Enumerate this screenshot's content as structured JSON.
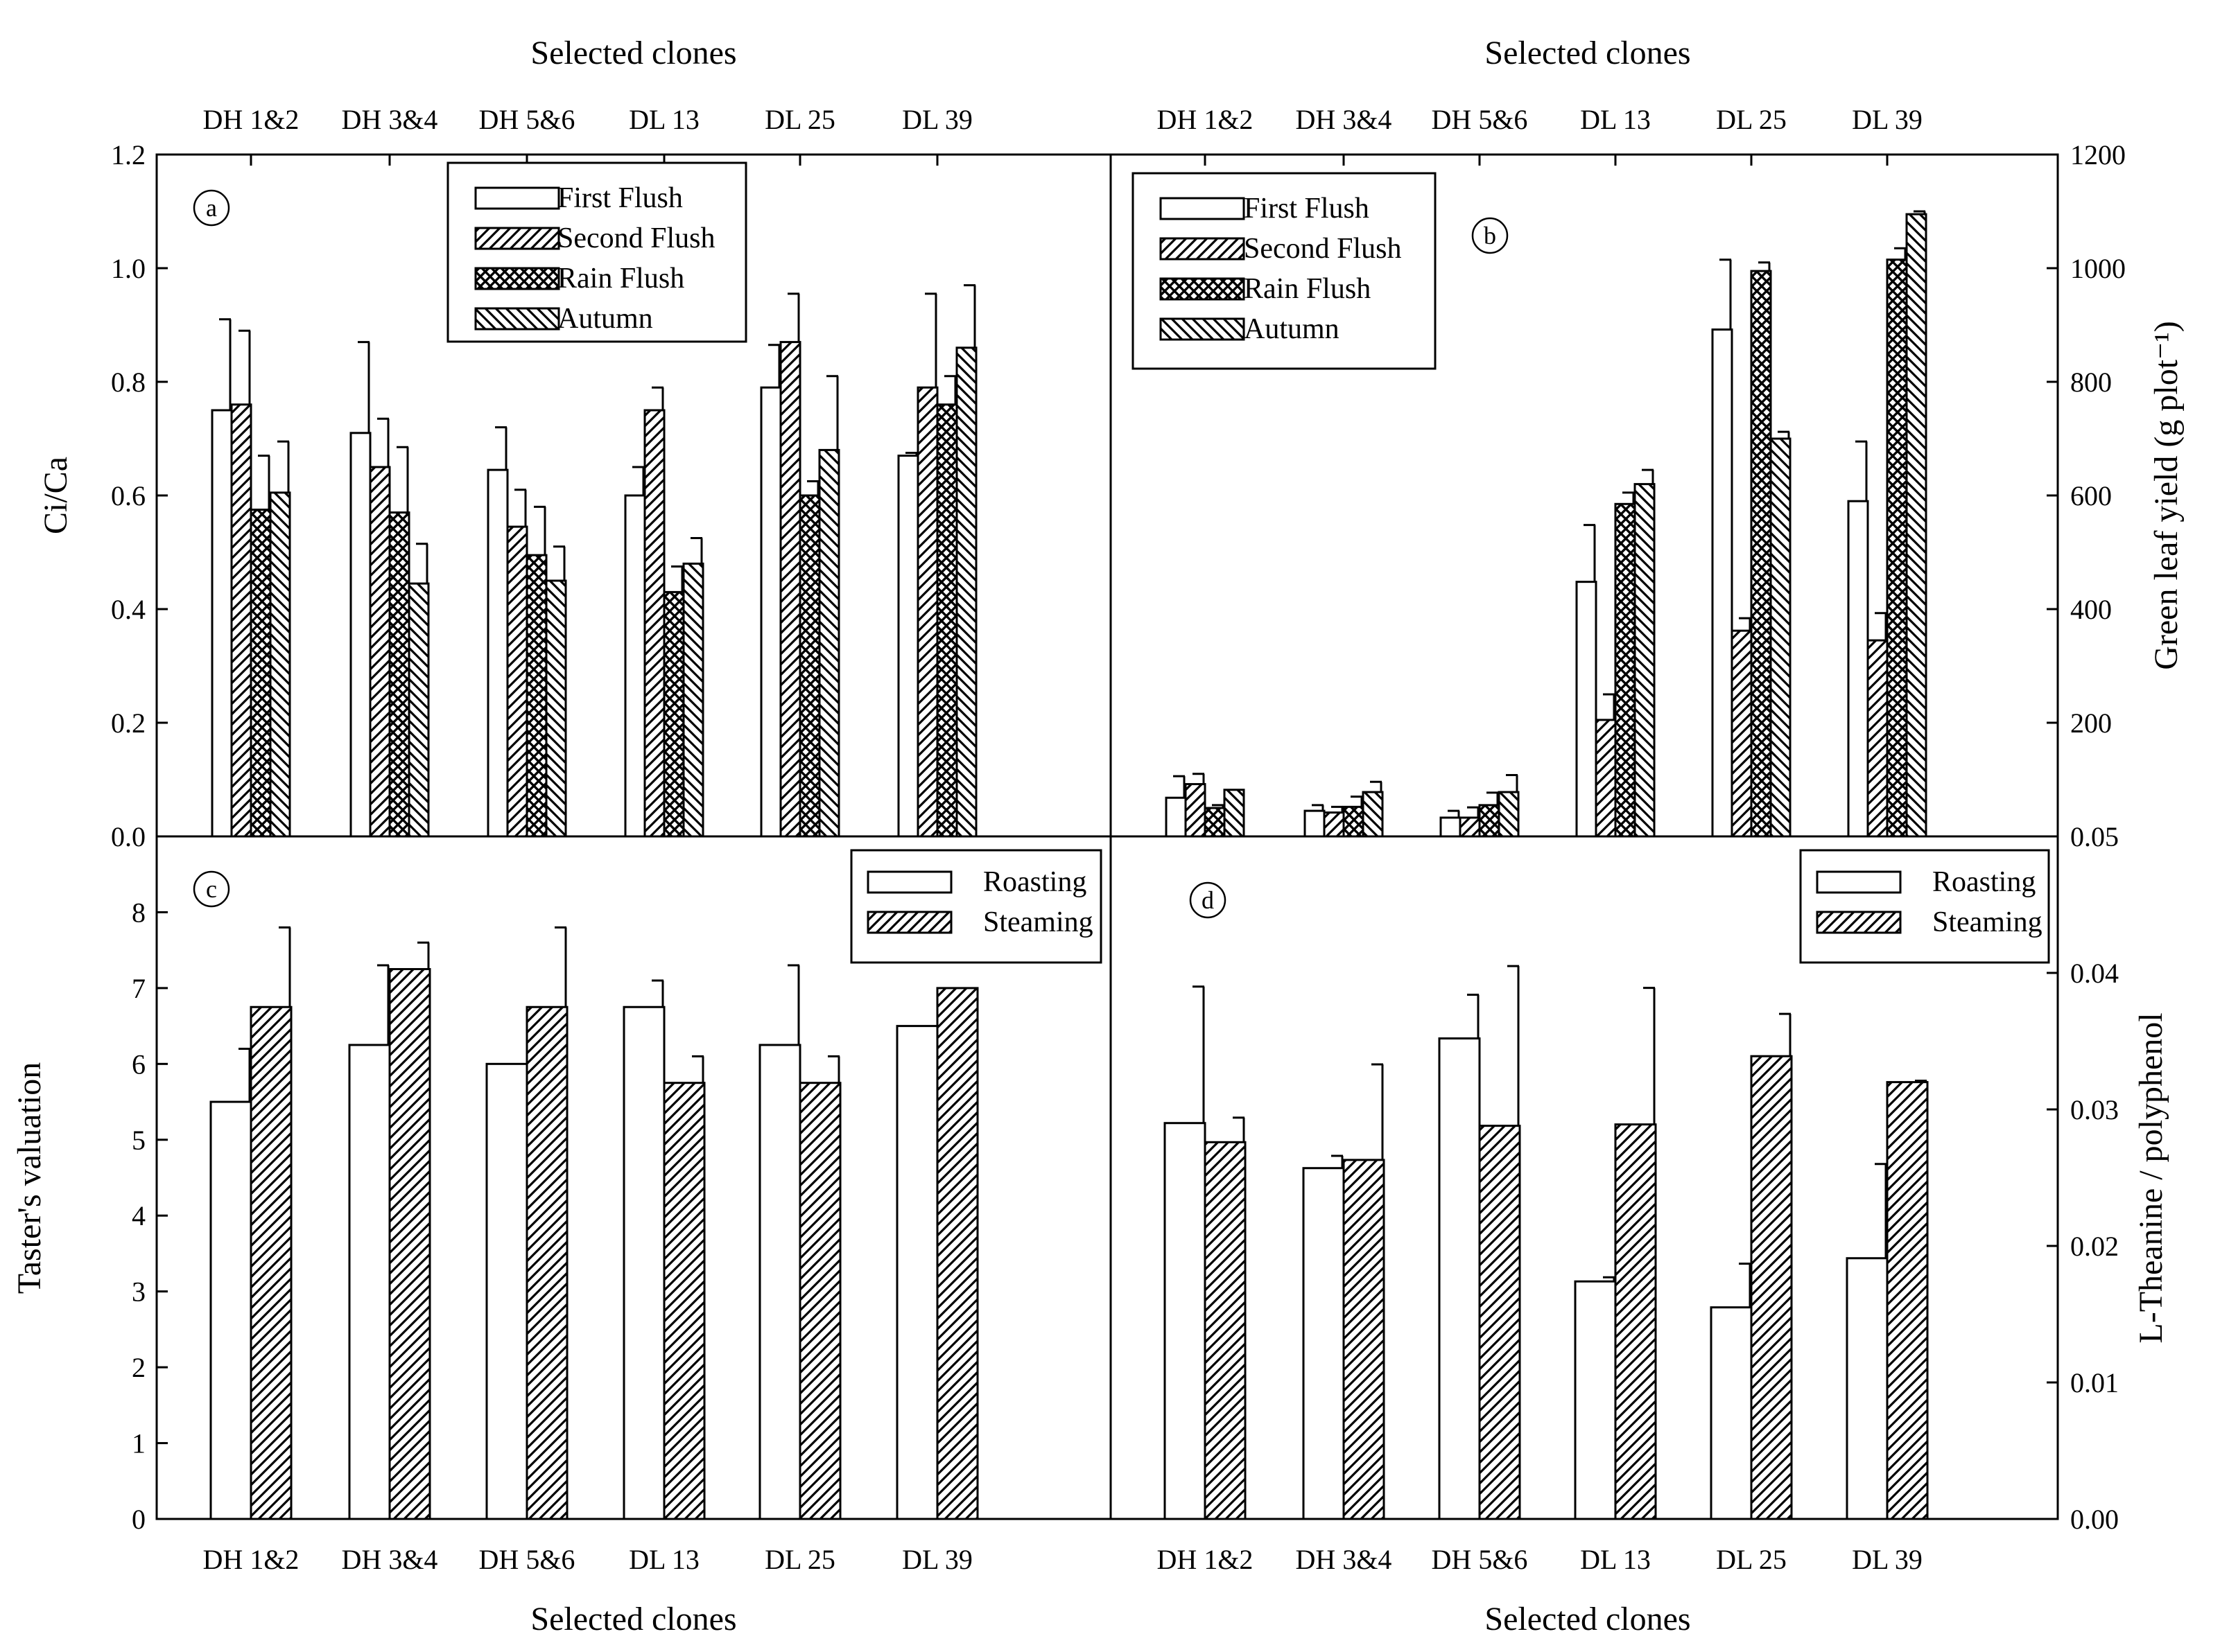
{
  "figure": {
    "top_axis_title": "Selected clones",
    "bottom_axis_title": "Selected clones"
  },
  "chart_data": [
    {
      "panel": "a",
      "type": "bar",
      "categories": [
        "DH 1&2",
        "DH 3&4",
        "DH 5&6",
        "DL 13",
        "DL 25",
        "DL 39"
      ],
      "category_axis": "top",
      "ylabel": "Ci/Ca",
      "y_axis_side": "left",
      "ylim": [
        0,
        1.2
      ],
      "yticks": [
        "0.0",
        "0.2",
        "0.4",
        "0.6",
        "0.8",
        "1.0",
        "1.2"
      ],
      "legend_position": "top-center",
      "series": [
        {
          "name": "First Flush",
          "pattern": "open",
          "values": [
            0.75,
            0.71,
            0.645,
            0.6,
            0.79,
            0.67
          ],
          "errors": [
            0.16,
            0.16,
            0.075,
            0.05,
            0.075,
            0.005
          ]
        },
        {
          "name": "Second Flush",
          "pattern": "hatch-right",
          "values": [
            0.76,
            0.65,
            0.545,
            0.75,
            0.87,
            0.79
          ],
          "errors": [
            0.13,
            0.085,
            0.065,
            0.04,
            0.085,
            0.165
          ]
        },
        {
          "name": "Rain Flush",
          "pattern": "crosshatch",
          "values": [
            0.575,
            0.57,
            0.495,
            0.43,
            0.6,
            0.76
          ],
          "errors": [
            0.095,
            0.115,
            0.085,
            0.045,
            0.025,
            0.05
          ]
        },
        {
          "name": "Autumn",
          "pattern": "hatch-left",
          "values": [
            0.605,
            0.445,
            0.45,
            0.48,
            0.68,
            0.86
          ],
          "errors": [
            0.09,
            0.07,
            0.06,
            0.045,
            0.13,
            0.11
          ]
        }
      ]
    },
    {
      "panel": "b",
      "type": "bar",
      "categories": [
        "DH 1&2",
        "DH 3&4",
        "DH 5&6",
        "DL 13",
        "DL 25",
        "DL 39"
      ],
      "category_axis": "top",
      "ylabel": "Green leaf yield (g plot⁻¹)",
      "y_axis_side": "right",
      "ylim": [
        0,
        1200
      ],
      "yticks": [
        "200",
        "400",
        "600",
        "800",
        "1000",
        "1200"
      ],
      "legend_position": "top-left",
      "series": [
        {
          "name": "First Flush",
          "pattern": "open",
          "values": [
            68,
            45,
            33,
            448,
            892,
            590
          ],
          "errors": [
            38,
            10,
            12,
            100,
            123,
            105
          ]
        },
        {
          "name": "Second Flush",
          "pattern": "hatch-right",
          "values": [
            92,
            42,
            33,
            205,
            362,
            345
          ],
          "errors": [
            18,
            10,
            18,
            45,
            22,
            48
          ]
        },
        {
          "name": "Rain Flush",
          "pattern": "crosshatch",
          "values": [
            50,
            52,
            55,
            585,
            995,
            1015
          ],
          "errors": [
            5,
            18,
            22,
            20,
            15,
            20
          ]
        },
        {
          "name": "Autumn",
          "pattern": "hatch-left",
          "values": [
            82,
            78,
            78,
            620,
            700,
            1095
          ],
          "errors": [
            0,
            18,
            30,
            25,
            12,
            5
          ]
        }
      ]
    },
    {
      "panel": "c",
      "type": "bar",
      "categories": [
        "DH 1&2",
        "DH 3&4",
        "DH 5&6",
        "DL 13",
        "DL 25",
        "DL 39"
      ],
      "category_axis": "bottom",
      "ylabel": "Taster's valuation",
      "y_axis_side": "left",
      "ylim": [
        0,
        9
      ],
      "yticks": [
        "0",
        "1",
        "2",
        "3",
        "4",
        "5",
        "6",
        "7",
        "8"
      ],
      "legend_position": "top-right",
      "series": [
        {
          "name": "Roasting",
          "pattern": "open",
          "values": [
            5.5,
            6.25,
            6.0,
            6.75,
            6.25,
            6.5
          ],
          "errors": [
            0.7,
            1.05,
            0,
            0.35,
            1.05,
            0
          ]
        },
        {
          "name": "Steaming",
          "pattern": "hatch-right",
          "values": [
            6.75,
            7.25,
            6.75,
            5.75,
            5.75,
            7.0
          ],
          "errors": [
            1.05,
            0.35,
            1.05,
            0.35,
            0.35,
            0
          ]
        }
      ]
    },
    {
      "panel": "d",
      "type": "bar",
      "categories": [
        "DH 1&2",
        "DH 3&4",
        "DH 5&6",
        "DL 13",
        "DL 25",
        "DL 39"
      ],
      "category_axis": "bottom",
      "ylabel": "L-Theanine / polyphenol",
      "y_axis_side": "right",
      "ylim": [
        0,
        0.05
      ],
      "yticks": [
        "0.00",
        "0.01",
        "0.02",
        "0.03",
        "0.04",
        "0.05"
      ],
      "legend_position": "top-right",
      "series": [
        {
          "name": "Roasting",
          "pattern": "open",
          "values": [
            0.029,
            0.0257,
            0.0352,
            0.0174,
            0.0155,
            0.0191
          ],
          "errors": [
            0.01,
            0.0009,
            0.0032,
            0.0003,
            0.0032,
            0.0069
          ]
        },
        {
          "name": "Steaming",
          "pattern": "hatch-right",
          "values": [
            0.0276,
            0.0263,
            0.0288,
            0.0289,
            0.0339,
            0.032
          ],
          "errors": [
            0.0018,
            0.007,
            0.0117,
            0.01,
            0.0031,
            0.0001
          ]
        }
      ]
    }
  ]
}
